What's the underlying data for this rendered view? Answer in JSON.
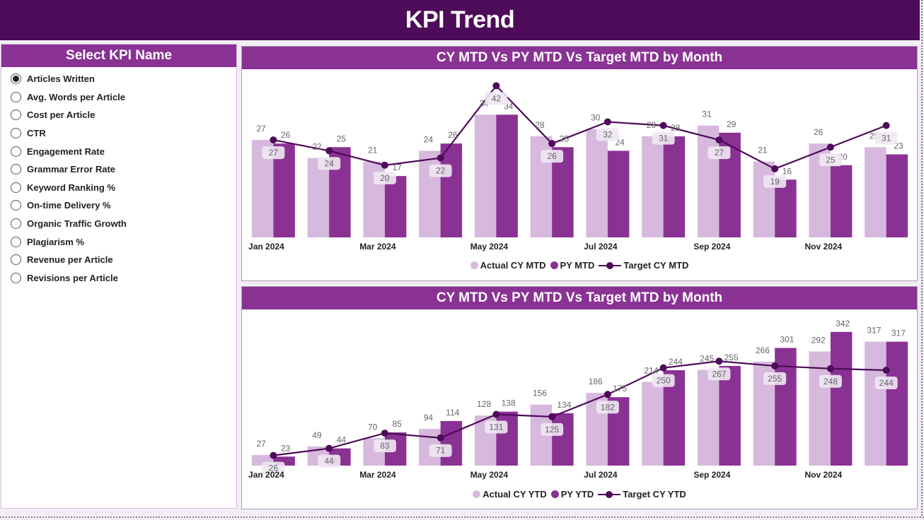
{
  "page": {
    "title": "KPI Trend"
  },
  "slicer": {
    "title": "Select KPI Name",
    "selected_index": 0,
    "items": [
      "Articles Written",
      "Avg. Words per Article",
      "Cost per Article",
      "CTR",
      "Engagement Rate",
      "Grammar Error Rate",
      "Keyword Ranking %",
      "On-time Delivery %",
      "Organic Traffic Growth",
      "Plagiarism %",
      "Revenue per Article",
      "Revisions per Article"
    ]
  },
  "colors": {
    "actual": "#d6b9dc",
    "py": "#8a3294",
    "target": "#4e0b59",
    "header": "#8a3294",
    "banner": "#4e0b59"
  },
  "chart_data": [
    {
      "type": "bar",
      "title": "CY MTD Vs PY MTD Vs Target MTD by Month",
      "categories": [
        "Jan 2024",
        "Feb 2024",
        "Mar 2024",
        "Apr 2024",
        "May 2024",
        "Jun 2024",
        "Jul 2024",
        "Aug 2024",
        "Sep 2024",
        "Oct 2024",
        "Nov 2024",
        "Dec 2024"
      ],
      "tick_labels": [
        "Jan 2024",
        "",
        "Mar 2024",
        "",
        "May 2024",
        "",
        "Jul 2024",
        "",
        "Sep 2024",
        "",
        "Nov 2024",
        ""
      ],
      "series": [
        {
          "name": "Actual CY MTD",
          "kind": "bar",
          "values": [
            27,
            22,
            21,
            24,
            34,
            28,
            30,
            28,
            31,
            21,
            26,
            25
          ]
        },
        {
          "name": "PY MTD",
          "kind": "bar",
          "values": [
            26,
            25,
            17,
            26,
            34,
            25,
            24,
            28,
            29,
            16,
            20,
            23
          ]
        },
        {
          "name": "Target CY MTD",
          "kind": "line",
          "values": [
            27,
            24,
            20,
            22,
            42,
            26,
            32,
            31,
            27,
            19,
            25,
            31
          ]
        }
      ],
      "xlabel": "",
      "ylabel": "",
      "ylim": [
        0,
        46
      ],
      "grid": false,
      "legend": "bottom-center"
    },
    {
      "type": "bar",
      "title": "CY MTD Vs PY MTD Vs Target MTD by Month",
      "categories": [
        "Jan 2024",
        "Feb 2024",
        "Mar 2024",
        "Apr 2024",
        "May 2024",
        "Jun 2024",
        "Jul 2024",
        "Aug 2024",
        "Sep 2024",
        "Oct 2024",
        "Nov 2024",
        "Dec 2024"
      ],
      "tick_labels": [
        "Jan 2024",
        "",
        "Mar 2024",
        "",
        "May 2024",
        "",
        "Jul 2024",
        "",
        "Sep 2024",
        "",
        "Nov 2024",
        ""
      ],
      "series": [
        {
          "name": "Actual CY YTD",
          "kind": "bar",
          "values": [
            27,
            49,
            70,
            94,
            128,
            156,
            186,
            214,
            245,
            266,
            292,
            317
          ]
        },
        {
          "name": "PY YTD",
          "kind": "bar",
          "values": [
            23,
            44,
            85,
            114,
            138,
            134,
            175,
            244,
            255,
            301,
            342,
            317
          ]
        },
        {
          "name": "Target CY YTD",
          "kind": "line",
          "values": [
            26,
            44,
            83,
            71,
            131,
            125,
            182,
            250,
            267,
            255,
            248,
            244
          ]
        }
      ],
      "xlabel": "",
      "ylabel": "",
      "ylim": [
        0,
        394
      ],
      "grid": false,
      "legend": "bottom-center"
    }
  ]
}
